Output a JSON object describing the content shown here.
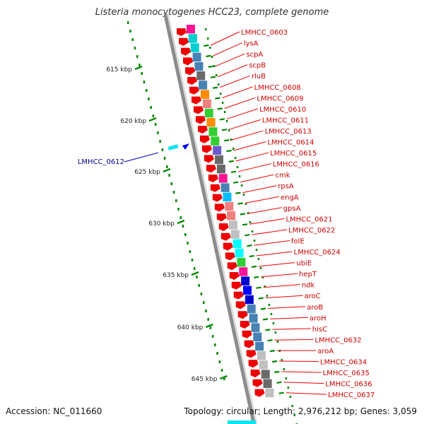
{
  "title": "Listeria monocytogenes HCC23, complete genome",
  "footer": {
    "accession": "Accession: NC_011660",
    "topology": "Topology: circular; Length: 2,976,212 bp; Genes: 3,059"
  },
  "colors": {
    "backbone": "#8c8c8c",
    "feature": "#ee0000",
    "label_text": "#cc0000",
    "leader": "#ee0000",
    "minus_label_text": "#000088",
    "minus_leader": "#0000cc",
    "tick": "#008800",
    "dotted_ring": "#008800"
  },
  "ticks": [
    "615 kbp",
    "620 kbp",
    "625 kbp",
    "630 kbp",
    "635 kbp",
    "640 kbp",
    "645 kbp"
  ],
  "minus_label": "LMHCC_0612",
  "labels": [
    "LMHCC_0603",
    "lysA",
    "scpA",
    "scpB",
    "rluB",
    "LMHCC_0608",
    "LMHCC_0609",
    "LMHCC_0610",
    "LMHCC_0611",
    "LMHCC_0613",
    "LMHCC_0614",
    "LMHCC_0615",
    "LMHCC_0616",
    "cmk",
    "rpsA",
    "engA",
    "gpsA",
    "LMHCC_0621",
    "LMHCC_0622",
    "folE",
    "LMHCC_0624",
    "ubiE",
    "hepT",
    "ndk",
    "aroC",
    "aroB",
    "aroH",
    "hisC",
    "LMHCC_0632",
    "aroA",
    "LMHCC_0634",
    "LMHCC_0635",
    "LMHCC_0636",
    "LMHCC_0637"
  ],
  "cog_blocks": [
    {
      "color": "#ff1493"
    },
    {
      "color": "#00ced1"
    },
    {
      "color": "#00ced1"
    },
    {
      "color": "#4682b4"
    },
    {
      "color": "#4682b4"
    },
    {
      "color": "#696969"
    },
    {
      "color": "#4682b4"
    },
    {
      "color": "#ff8c00"
    },
    {
      "color": "#f08080"
    },
    {
      "color": "#32cd32"
    },
    {
      "color": "#ff8c00"
    },
    {
      "color": "#32cd32"
    },
    {
      "color": "#32cd32"
    },
    {
      "color": "#6a5acd"
    },
    {
      "color": "#696969"
    },
    {
      "color": "#696969"
    },
    {
      "color": "#ff1493"
    },
    {
      "color": "#4682b4"
    },
    {
      "color": "#00bfff"
    },
    {
      "color": "#f08080"
    },
    {
      "color": "#f08080"
    },
    {
      "color": "#c0c0c0"
    },
    {
      "color": "#c0c0c0"
    },
    {
      "color": "#00ffff"
    },
    {
      "color": "#00ffff"
    },
    {
      "color": "#32cd32"
    },
    {
      "color": "#ff1493"
    },
    {
      "color": "#0000cd"
    },
    {
      "color": "#0000ff"
    },
    {
      "color": "#0000cd"
    },
    {
      "color": "#4682b4"
    },
    {
      "color": "#4682b4"
    },
    {
      "color": "#4682b4"
    },
    {
      "color": "#4682b4"
    },
    {
      "color": "#4682b4"
    },
    {
      "color": "#c0c0c0"
    },
    {
      "color": "#c0c0c0"
    },
    {
      "color": "#696969"
    },
    {
      "color": "#696969"
    },
    {
      "color": "#c0c0c0"
    }
  ]
}
